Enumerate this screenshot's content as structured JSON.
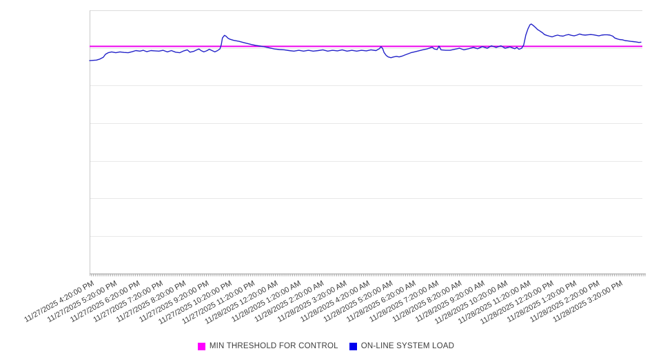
{
  "chart_data": {
    "type": "line",
    "title": "",
    "x_axis": {
      "labels": [
        "11/27/2025 4:20:00 PM",
        "11/27/2025 5:20:00 PM",
        "11/27/2025 6:20:00 PM",
        "11/27/2025 7:20:00 PM",
        "11/27/2025 8:20:00 PM",
        "11/27/2025 9:20:00 PM",
        "11/27/2025 10:20:00 PM",
        "11/27/2025 11:20:00 PM",
        "11/28/2025 12:20:00 AM",
        "11/28/2025 1:20:00 AM",
        "11/28/2025 2:20:00 AM",
        "11/28/2025 3:20:00 AM",
        "11/28/2025 4:20:00 AM",
        "11/28/2025 5:20:00 AM",
        "11/28/2025 6:20:00 AM",
        "11/28/2025 7:20:00 AM",
        "11/28/2025 8:20:00 AM",
        "11/28/2025 9:20:00 AM",
        "11/28/2025 10:20:00 AM",
        "11/28/2025 11:20:00 AM",
        "11/28/2025 12:20:00 PM",
        "11/28/2025 1:20:00 PM",
        "11/28/2025 2:20:00 PM",
        "11/28/2025 3:20:00 PM"
      ],
      "major_tick_interval": "1 hour",
      "minor_tick_interval": "5 minutes",
      "x_unit": "hours_from_first_tick",
      "xlim": [
        -0.25,
        23.85
      ]
    },
    "y_axis": {
      "tick_labels_visible": false,
      "ylim": [
        0,
        100
      ],
      "gridline_divisions": 7,
      "grid": true
    },
    "legend_position": "bottom-center",
    "series": [
      {
        "name": "MIN THRESHOLD FOR CONTROL",
        "type": "threshold-line",
        "color": "#ff00ff",
        "line_color": "#ee00ee",
        "value": 86.3
      },
      {
        "name": "ON-LINE SYSTEM LOAD",
        "type": "line",
        "color": "#0000ee",
        "line_color": "#2222c8",
        "points": [
          [
            -0.21,
            80.9
          ],
          [
            0.09,
            81.1
          ],
          [
            0.24,
            81.5
          ],
          [
            0.39,
            82.2
          ],
          [
            0.48,
            83.3
          ],
          [
            0.6,
            83.9
          ],
          [
            0.75,
            84.2
          ],
          [
            0.93,
            83.9
          ],
          [
            1.11,
            84.2
          ],
          [
            1.29,
            84.0
          ],
          [
            1.47,
            83.9
          ],
          [
            1.65,
            84.3
          ],
          [
            1.8,
            84.7
          ],
          [
            1.98,
            84.5
          ],
          [
            2.13,
            84.8
          ],
          [
            2.28,
            84.3
          ],
          [
            2.46,
            84.7
          ],
          [
            2.63,
            84.6
          ],
          [
            2.81,
            84.5
          ],
          [
            2.99,
            84.8
          ],
          [
            3.17,
            84.2
          ],
          [
            3.35,
            84.7
          ],
          [
            3.53,
            84.1
          ],
          [
            3.71,
            83.9
          ],
          [
            3.89,
            84.6
          ],
          [
            4.04,
            85.0
          ],
          [
            4.16,
            84.1
          ],
          [
            4.31,
            84.4
          ],
          [
            4.46,
            85.0
          ],
          [
            4.55,
            85.3
          ],
          [
            4.64,
            84.7
          ],
          [
            4.76,
            84.2
          ],
          [
            4.88,
            84.6
          ],
          [
            5.0,
            85.2
          ],
          [
            5.12,
            84.7
          ],
          [
            5.24,
            84.2
          ],
          [
            5.36,
            84.7
          ],
          [
            5.42,
            85.1
          ],
          [
            5.46,
            85.3
          ],
          [
            5.52,
            87.0
          ],
          [
            5.57,
            89.5
          ],
          [
            5.66,
            90.5
          ],
          [
            5.72,
            90.2
          ],
          [
            5.81,
            89.4
          ],
          [
            5.9,
            89.0
          ],
          [
            6.05,
            88.6
          ],
          [
            6.29,
            88.2
          ],
          [
            6.47,
            87.8
          ],
          [
            6.65,
            87.4
          ],
          [
            6.83,
            87.0
          ],
          [
            7.01,
            86.7
          ],
          [
            7.22,
            86.4
          ],
          [
            7.42,
            86.1
          ],
          [
            7.63,
            85.7
          ],
          [
            7.84,
            85.3
          ],
          [
            8.05,
            85.1
          ],
          [
            8.26,
            85.0
          ],
          [
            8.47,
            84.7
          ],
          [
            8.68,
            84.5
          ],
          [
            8.89,
            84.8
          ],
          [
            9.1,
            84.5
          ],
          [
            9.31,
            84.8
          ],
          [
            9.52,
            84.5
          ],
          [
            9.73,
            84.7
          ],
          [
            9.94,
            85.0
          ],
          [
            10.15,
            84.5
          ],
          [
            10.36,
            84.8
          ],
          [
            10.57,
            84.6
          ],
          [
            10.78,
            85.0
          ],
          [
            10.99,
            84.5
          ],
          [
            11.2,
            84.8
          ],
          [
            11.41,
            84.5
          ],
          [
            11.62,
            84.8
          ],
          [
            11.83,
            84.6
          ],
          [
            12.03,
            85.0
          ],
          [
            12.25,
            84.7
          ],
          [
            12.4,
            85.4
          ],
          [
            12.47,
            86.2
          ],
          [
            12.54,
            85.5
          ],
          [
            12.6,
            84.0
          ],
          [
            12.69,
            82.9
          ],
          [
            12.78,
            82.3
          ],
          [
            12.9,
            82.0
          ],
          [
            13.02,
            82.3
          ],
          [
            13.14,
            82.5
          ],
          [
            13.26,
            82.3
          ],
          [
            13.38,
            82.6
          ],
          [
            13.5,
            83.0
          ],
          [
            13.62,
            83.4
          ],
          [
            13.77,
            83.9
          ],
          [
            13.92,
            84.2
          ],
          [
            14.1,
            84.6
          ],
          [
            14.28,
            85.0
          ],
          [
            14.46,
            85.3
          ],
          [
            14.6,
            85.7
          ],
          [
            14.7,
            86.0
          ],
          [
            14.79,
            85.3
          ],
          [
            14.91,
            85.1
          ],
          [
            14.99,
            86.4
          ],
          [
            15.08,
            85.0
          ],
          [
            15.29,
            84.8
          ],
          [
            15.47,
            84.8
          ],
          [
            15.68,
            85.2
          ],
          [
            15.89,
            85.6
          ],
          [
            16.07,
            85.0
          ],
          [
            16.28,
            85.4
          ],
          [
            16.49,
            85.9
          ],
          [
            16.67,
            85.4
          ],
          [
            16.88,
            86.2
          ],
          [
            17.09,
            85.6
          ],
          [
            17.27,
            86.5
          ],
          [
            17.48,
            85.9
          ],
          [
            17.69,
            86.5
          ],
          [
            17.87,
            85.6
          ],
          [
            18.08,
            86.1
          ],
          [
            18.29,
            85.4
          ],
          [
            18.38,
            85.9
          ],
          [
            18.47,
            85.2
          ],
          [
            18.59,
            85.6
          ],
          [
            18.68,
            86.9
          ],
          [
            18.77,
            90.6
          ],
          [
            18.86,
            92.9
          ],
          [
            18.95,
            94.5
          ],
          [
            19.01,
            94.8
          ],
          [
            19.1,
            94.2
          ],
          [
            19.19,
            93.5
          ],
          [
            19.28,
            92.7
          ],
          [
            19.37,
            92.2
          ],
          [
            19.49,
            91.5
          ],
          [
            19.58,
            90.8
          ],
          [
            19.67,
            90.5
          ],
          [
            19.79,
            90.2
          ],
          [
            19.91,
            89.9
          ],
          [
            20.03,
            90.3
          ],
          [
            20.15,
            90.6
          ],
          [
            20.27,
            90.3
          ],
          [
            20.39,
            90.2
          ],
          [
            20.51,
            90.6
          ],
          [
            20.63,
            90.8
          ],
          [
            20.75,
            90.5
          ],
          [
            20.87,
            90.3
          ],
          [
            20.99,
            90.6
          ],
          [
            21.11,
            91.0
          ],
          [
            21.23,
            90.7
          ],
          [
            21.35,
            90.6
          ],
          [
            21.47,
            90.7
          ],
          [
            21.59,
            90.8
          ],
          [
            21.71,
            90.7
          ],
          [
            21.83,
            90.5
          ],
          [
            21.95,
            90.3
          ],
          [
            22.07,
            90.6
          ],
          [
            22.19,
            90.7
          ],
          [
            22.31,
            90.7
          ],
          [
            22.43,
            90.6
          ],
          [
            22.55,
            90.2
          ],
          [
            22.64,
            89.5
          ],
          [
            22.73,
            89.2
          ],
          [
            22.85,
            88.9
          ],
          [
            22.97,
            88.8
          ],
          [
            23.09,
            88.5
          ],
          [
            23.21,
            88.4
          ],
          [
            23.33,
            88.2
          ],
          [
            23.45,
            88.1
          ],
          [
            23.57,
            88.0
          ],
          [
            23.69,
            87.8
          ],
          [
            23.78,
            87.9
          ]
        ]
      }
    ],
    "colors": {
      "gridline": "#e8e8e8",
      "plot_border_top": "#dcdcdc",
      "axis_line": "#9b9b9b",
      "tick_mark": "#a8a8a8",
      "y_axis_line": "#c8c8c8",
      "tick_label": "#3a3a3a"
    }
  }
}
